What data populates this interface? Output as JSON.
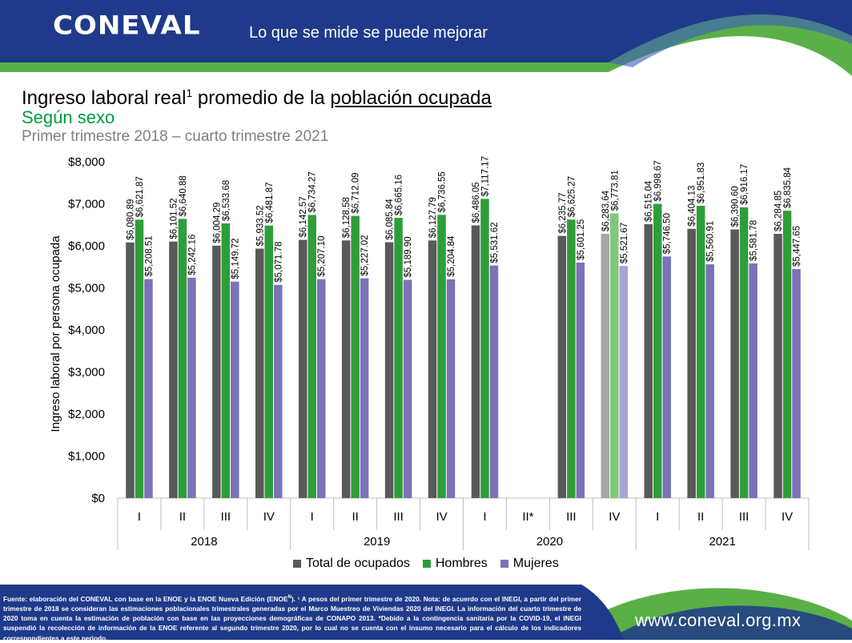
{
  "header": {
    "logo_text": "CONEVAL",
    "slogan": "Lo que se mide se puede mejorar"
  },
  "title": {
    "main_prefix": "Ingreso laboral real",
    "superscript": "1",
    "main_middle": " promedio de la ",
    "main_underlined": "población ocupada",
    "subtitle": "Según sexo",
    "period": "Primer trimestre 2018 – cuarto trimestre 2021"
  },
  "footer": {
    "source_part1": "Fuente: elaboración del CONEVAL con base en la ENOE y la ENOE Nueva Edición (ENOE",
    "source_sup": "N",
    "source_part2": "). ¹ A pesos del primer trimestre de 2020. Nota: de acuerdo con el INEGI, a partir del primer trimestre de 2018 se consideran las estimaciones poblacionales trimestrales generadas por el Marco Muestreo de Viviendas 2020 del INEGI. La información del cuarto trimestre de 2020 toma en cuenta la estimación de población con base en las proyecciones demográficas de CONAPO 2013. *Debido a la contingencia sanitaria por la COVID-19, el INEGI suspendió la recolección de información de la ENOE referente al segundo trimestre 2020, por lo cual no se cuenta con el insumo necesario para el cálculo de los indicadores correspondientes a este periodo.",
    "url": "www.coneval.org.mx"
  },
  "colors": {
    "header_blue": "#1f3a8a",
    "header_green": "#5ab046",
    "total": "#595959",
    "hombres": "#2e9e3a",
    "mujeres": "#7b72b8",
    "total_highlight": "#a6a6a6",
    "hombres_highlight": "#7fc97a",
    "mujeres_highlight": "#a9a3d6"
  },
  "chart_data": {
    "type": "bar",
    "ylabel": "Ingreso laboral por persona ocupada",
    "xlabel": "",
    "ylim": [
      0,
      8000
    ],
    "y_ticks": [
      "$0",
      "$1,000",
      "$2,000",
      "$3,000",
      "$4,000",
      "$5,000",
      "$6,000",
      "$7,000",
      "$8,000"
    ],
    "y_tick_values": [
      0,
      1000,
      2000,
      3000,
      4000,
      5000,
      6000,
      7000,
      8000
    ],
    "years": [
      "2018",
      "2019",
      "2020",
      "2021"
    ],
    "categories": [
      "I",
      "II",
      "III",
      "IV",
      "I",
      "II",
      "III",
      "IV",
      "I",
      "II*",
      "III",
      "IV",
      "I",
      "II",
      "III",
      "IV"
    ],
    "highlight_index": 11,
    "legend_position": "bottom",
    "series": [
      {
        "name": "Total de ocupados",
        "values": [
          6080.89,
          6101.52,
          6004.29,
          5933.52,
          6142.57,
          6128.58,
          6085.84,
          6127.79,
          6486.05,
          null,
          6235.77,
          6283.64,
          6515.04,
          6404.13,
          6390.6,
          6284.85
        ],
        "labels": [
          "$6,080.89",
          "$6,101.52",
          "$6,004.29",
          "$5,933.52",
          "$6,142.57",
          "$6,128.58",
          "$6,085.84",
          "$6,127.79",
          "$6,486.05",
          "",
          "$6,235.77",
          "$6,283.64",
          "$6,515.04",
          "$6,404.13",
          "$6,390.60",
          "$6,284.85"
        ]
      },
      {
        "name": "Hombres",
        "values": [
          6621.87,
          6640.88,
          6533.68,
          6481.87,
          6734.27,
          6712.09,
          6665.16,
          6736.55,
          7117.17,
          null,
          6625.27,
          6773.81,
          6998.67,
          6951.83,
          6916.17,
          6835.84
        ],
        "labels": [
          "$6,621.87",
          "$6,640.88",
          "$6,533.68",
          "$6,481.87",
          "$6,734.27",
          "$6,712.09",
          "$6,665.16",
          "$6,736.55",
          "$7,117.17",
          "",
          "$6,625.27",
          "$6,773.81",
          "$6,998.67",
          "$6,951.83",
          "$6,916.17",
          "$6,835.84"
        ]
      },
      {
        "name": "Mujeres",
        "values": [
          5208.51,
          5242.16,
          5149.72,
          5071.78,
          5207.1,
          5227.02,
          5189.9,
          5204.84,
          5531.62,
          null,
          5601.25,
          5521.67,
          5746.5,
          5560.91,
          5581.78,
          5447.65
        ],
        "labels": [
          "$5,208.51",
          "$5,242.16",
          "$5,149.72",
          "$5,071.78",
          "$5,207.10",
          "$5,227.02",
          "$5,189.90",
          "$5,204.84",
          "$5,531.62",
          "",
          "$5,601.25",
          "$5,521.67",
          "$5,746.50",
          "$5,560.91",
          "$5,581.78",
          "$5,447.65"
        ]
      }
    ]
  }
}
